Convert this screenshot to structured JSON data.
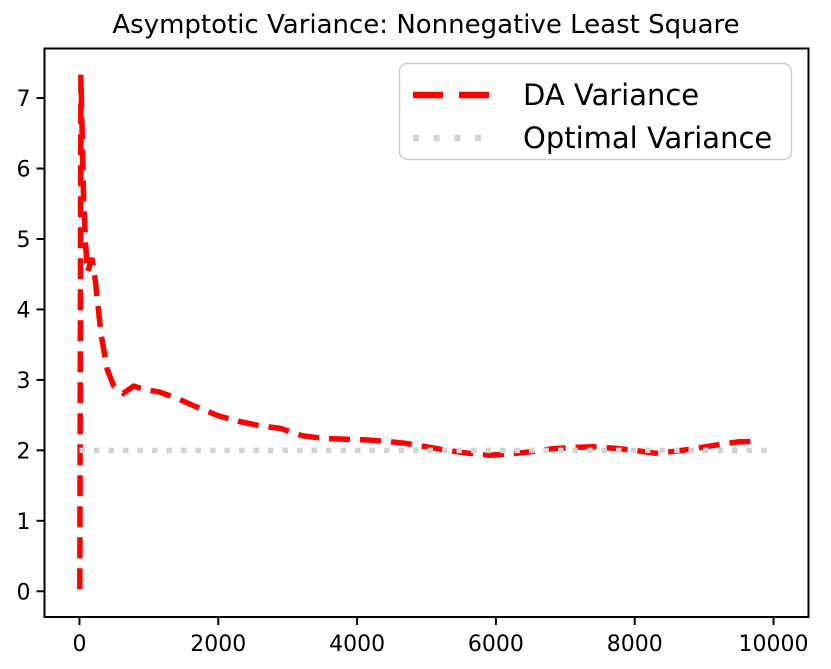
{
  "chart_data": {
    "type": "line",
    "title": "Asymptotic Variance: Nonnegative Least Square",
    "xlabel": "",
    "ylabel": "",
    "xlim": [
      -504,
      10504
    ],
    "ylim": [
      -0.365,
      7.703
    ],
    "xticks": [
      0,
      2000,
      4000,
      6000,
      8000,
      10000
    ],
    "yticks": [
      0,
      1,
      2,
      3,
      4,
      5,
      6,
      7
    ],
    "grid": false,
    "legend_position": "upper right",
    "series": [
      {
        "name": "DA Variance",
        "color": "#ff0000",
        "linestyle": "dashed",
        "linewidth": 5.5,
        "x": [
          5,
          20,
          60,
          90,
          115,
          180,
          230,
          310,
          400,
          490,
          630,
          780,
          950,
          1150,
          1400,
          1700,
          2000,
          2300,
          2600,
          2900,
          3200,
          3500,
          3800,
          4100,
          4400,
          4700,
          5000,
          5300,
          5600,
          5900,
          6200,
          6500,
          6800,
          7100,
          7400,
          7700,
          8000,
          8300,
          8600,
          8900,
          9200,
          9500,
          9800
        ],
        "y": [
          0.03,
          7.33,
          5.55,
          4.9,
          4.53,
          4.73,
          4.4,
          3.65,
          3.15,
          2.92,
          2.81,
          2.91,
          2.86,
          2.83,
          2.74,
          2.61,
          2.49,
          2.41,
          2.35,
          2.31,
          2.21,
          2.17,
          2.16,
          2.15,
          2.13,
          2.1,
          2.05,
          2.0,
          1.96,
          1.93,
          1.95,
          1.98,
          2.02,
          2.04,
          2.05,
          2.03,
          2.0,
          1.96,
          1.99,
          2.03,
          2.08,
          2.12,
          2.13
        ]
      },
      {
        "name": "Optimal Variance",
        "color": "#d3d3d3",
        "linestyle": "dotted",
        "linewidth": 5.5,
        "x": [
          0,
          10000
        ],
        "y": [
          2,
          2
        ]
      }
    ]
  },
  "colors": {
    "axis": "#000000",
    "background": "#ffffff",
    "legend_border": "#cccccc",
    "legend_fill": "#ffffff"
  }
}
